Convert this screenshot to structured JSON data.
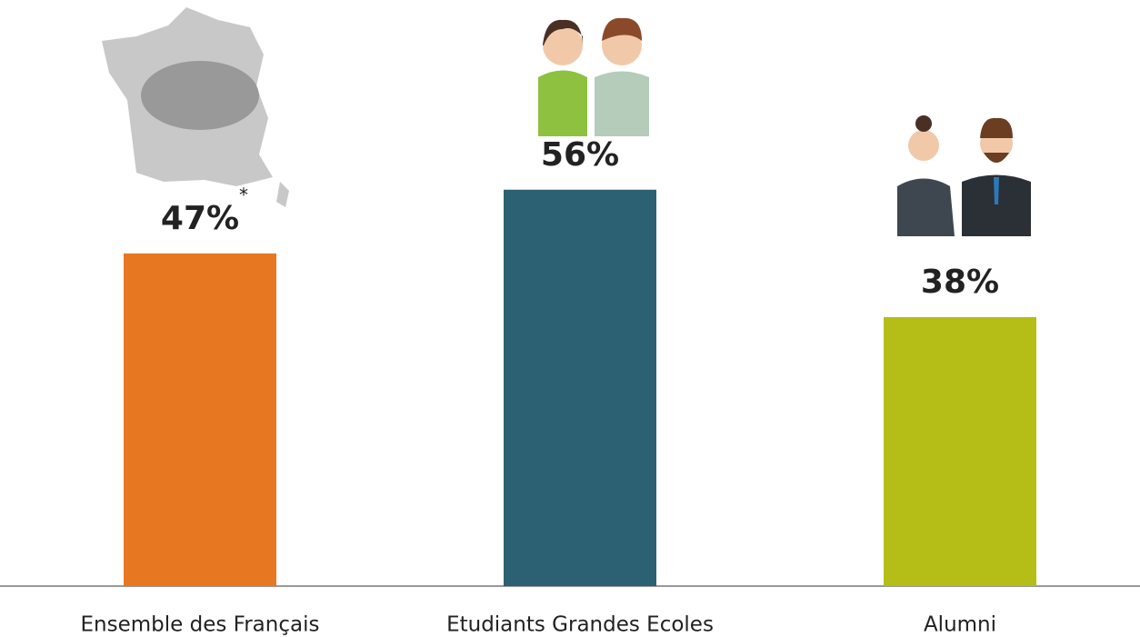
{
  "chart_data": {
    "type": "bar",
    "categories": [
      "Ensemble des Français",
      "Etudiants Grandes Ecoles",
      "Alumni"
    ],
    "values": [
      47,
      56,
      38
    ],
    "value_labels": [
      "47%",
      "56%",
      "38%"
    ],
    "colors": [
      "#e87722",
      "#2c6173",
      "#b5bd17"
    ],
    "annotation": "*"
  }
}
